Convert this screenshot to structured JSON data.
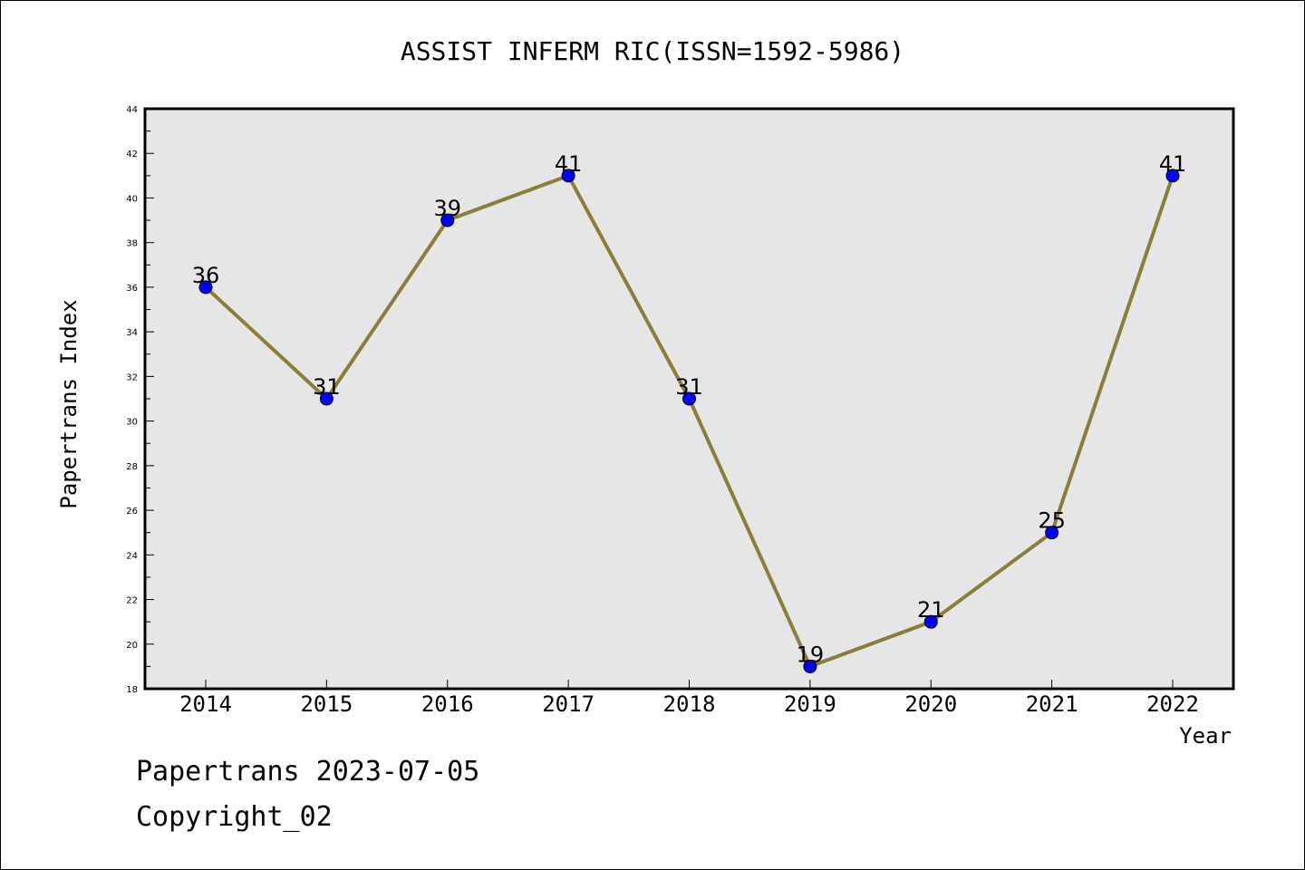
{
  "chart_data": {
    "type": "line",
    "title": "ASSIST INFERM RIC(ISSN=1592-5986)",
    "xlabel": "Year",
    "ylabel": "Papertrans Index",
    "categories": [
      "2014",
      "2015",
      "2016",
      "2017",
      "2018",
      "2019",
      "2020",
      "2021",
      "2022"
    ],
    "series": [
      {
        "values": [
          36,
          31,
          39,
          41,
          31,
          19,
          21,
          25,
          41
        ]
      }
    ],
    "ylim": [
      18,
      44
    ],
    "yticks": [
      18,
      20,
      22,
      24,
      26,
      28,
      30,
      32,
      34,
      36,
      38,
      40,
      42,
      44
    ],
    "data_labels": true,
    "grid": false,
    "legend": "none",
    "colors": {
      "line": "#8b7d3a",
      "marker": "#0000ff",
      "plot_background": "#e6e6e6",
      "axes": "#000000"
    }
  },
  "footer": {
    "line1": "Papertrans 2023-07-05",
    "line2": "Copyright_02"
  }
}
